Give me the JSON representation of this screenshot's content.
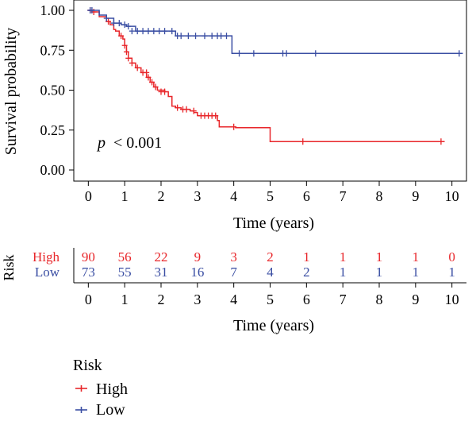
{
  "chart_data": {
    "type": "line",
    "subtype": "kaplan-meier",
    "ylabel": "Survival probability",
    "xlabel": "Time (years)",
    "xlim": [
      -0.4,
      10.4
    ],
    "ylim": [
      0,
      1
    ],
    "x_ticks": [
      "0",
      "1",
      "2",
      "3",
      "4",
      "5",
      "6",
      "7",
      "8",
      "9",
      "10"
    ],
    "y_ticks": [
      "0.00",
      "0.25",
      "0.50",
      "0.75",
      "1.00"
    ],
    "annotation": {
      "p_symbol": "p",
      "p_value": "< 0.001"
    },
    "series": [
      {
        "name": "High",
        "color": "#e8262a",
        "steps": [
          [
            0,
            1.0
          ],
          [
            0.1,
            0.99
          ],
          [
            0.3,
            0.96
          ],
          [
            0.5,
            0.93
          ],
          [
            0.6,
            0.91
          ],
          [
            0.7,
            0.88
          ],
          [
            0.75,
            0.87
          ],
          [
            0.85,
            0.84
          ],
          [
            0.95,
            0.82
          ],
          [
            1.0,
            0.78
          ],
          [
            1.05,
            0.74
          ],
          [
            1.1,
            0.7
          ],
          [
            1.2,
            0.67
          ],
          [
            1.3,
            0.64
          ],
          [
            1.45,
            0.61
          ],
          [
            1.6,
            0.58
          ],
          [
            1.7,
            0.55
          ],
          [
            1.8,
            0.52
          ],
          [
            1.9,
            0.5
          ],
          [
            2.1,
            0.49
          ],
          [
            2.2,
            0.46
          ],
          [
            2.3,
            0.4
          ],
          [
            2.4,
            0.39
          ],
          [
            2.55,
            0.38
          ],
          [
            2.8,
            0.37
          ],
          [
            2.9,
            0.36
          ],
          [
            3.0,
            0.34
          ],
          [
            3.55,
            0.31
          ],
          [
            3.6,
            0.27
          ],
          [
            4.05,
            0.265
          ],
          [
            5.0,
            0.178
          ],
          [
            9.8,
            0.178
          ]
        ],
        "censors": [
          [
            0.05,
            1.0
          ],
          [
            0.15,
            0.99
          ],
          [
            0.55,
            0.93
          ],
          [
            0.9,
            0.84
          ],
          [
            1.0,
            0.78
          ],
          [
            1.05,
            0.74
          ],
          [
            1.1,
            0.7
          ],
          [
            1.2,
            0.67
          ],
          [
            1.35,
            0.64
          ],
          [
            1.5,
            0.61
          ],
          [
            1.6,
            0.61
          ],
          [
            1.65,
            0.58
          ],
          [
            1.75,
            0.55
          ],
          [
            1.85,
            0.52
          ],
          [
            2.0,
            0.49
          ],
          [
            2.1,
            0.49
          ],
          [
            2.45,
            0.39
          ],
          [
            2.6,
            0.38
          ],
          [
            2.7,
            0.38
          ],
          [
            2.9,
            0.37
          ],
          [
            3.1,
            0.34
          ],
          [
            3.2,
            0.34
          ],
          [
            3.3,
            0.34
          ],
          [
            3.4,
            0.34
          ],
          [
            3.5,
            0.34
          ],
          [
            4.0,
            0.27
          ],
          [
            5.9,
            0.178
          ],
          [
            9.7,
            0.178
          ]
        ]
      },
      {
        "name": "Low",
        "color": "#3a4ea3",
        "steps": [
          [
            0,
            1.0
          ],
          [
            0.3,
            0.97
          ],
          [
            0.5,
            0.95
          ],
          [
            0.7,
            0.92
          ],
          [
            0.9,
            0.91
          ],
          [
            1.05,
            0.9
          ],
          [
            1.3,
            0.87
          ],
          [
            2.4,
            0.84
          ],
          [
            3.9,
            0.84
          ],
          [
            3.95,
            0.73
          ],
          [
            10.3,
            0.73
          ]
        ],
        "censors": [
          [
            0.05,
            1.0
          ],
          [
            0.1,
            1.0
          ],
          [
            0.5,
            0.95
          ],
          [
            0.7,
            0.92
          ],
          [
            0.85,
            0.92
          ],
          [
            1.0,
            0.91
          ],
          [
            1.1,
            0.9
          ],
          [
            1.2,
            0.87
          ],
          [
            1.35,
            0.87
          ],
          [
            1.5,
            0.87
          ],
          [
            1.65,
            0.87
          ],
          [
            1.8,
            0.87
          ],
          [
            1.95,
            0.87
          ],
          [
            2.1,
            0.87
          ],
          [
            2.3,
            0.87
          ],
          [
            2.45,
            0.84
          ],
          [
            2.55,
            0.84
          ],
          [
            2.75,
            0.84
          ],
          [
            2.95,
            0.84
          ],
          [
            3.2,
            0.84
          ],
          [
            3.4,
            0.84
          ],
          [
            3.55,
            0.84
          ],
          [
            3.65,
            0.84
          ],
          [
            3.8,
            0.84
          ],
          [
            4.15,
            0.73
          ],
          [
            4.55,
            0.73
          ],
          [
            5.35,
            0.73
          ],
          [
            5.45,
            0.73
          ],
          [
            6.25,
            0.73
          ],
          [
            10.2,
            0.73
          ]
        ]
      }
    ]
  },
  "risk_table": {
    "title": "Risk",
    "xlabel": "Time (years)",
    "rows": [
      {
        "label": "High",
        "color": "#e8262a",
        "values": [
          "90",
          "56",
          "22",
          "9",
          "3",
          "2",
          "1",
          "1",
          "1",
          "1",
          "0"
        ]
      },
      {
        "label": "Low",
        "color": "#3a4ea3",
        "values": [
          "73",
          "55",
          "31",
          "16",
          "7",
          "4",
          "2",
          "1",
          "1",
          "1",
          "1"
        ]
      }
    ]
  },
  "legend": {
    "title": "Risk",
    "items": [
      {
        "label": "High",
        "color": "#e8262a"
      },
      {
        "label": "Low",
        "color": "#3a4ea3"
      }
    ]
  }
}
